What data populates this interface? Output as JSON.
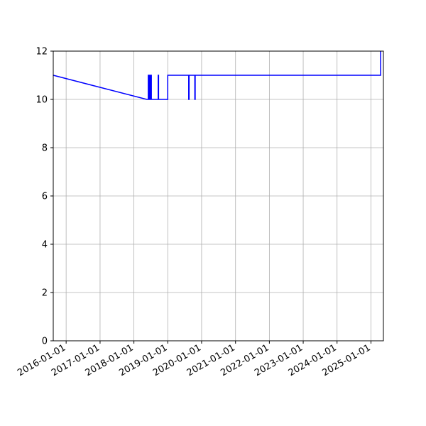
{
  "chart_data": {
    "type": "line",
    "title": "",
    "xlabel": "",
    "ylabel": "",
    "xlim": [
      "2015-08-15",
      "2025-05-15"
    ],
    "ylim": [
      0,
      12
    ],
    "grid": true,
    "x_ticks": [
      "2016-01-01",
      "2017-01-01",
      "2018-01-01",
      "2019-01-01",
      "2020-01-01",
      "2021-01-01",
      "2022-01-01",
      "2023-01-01",
      "2024-01-01",
      "2025-01-01"
    ],
    "y_ticks": [
      0,
      2,
      4,
      6,
      8,
      10,
      12
    ],
    "colors": {
      "line": "#0000ff",
      "grid": "#b0b0b0",
      "axes": "#000000"
    },
    "series": [
      {
        "values": [
          [
            "2015-08-15",
            11
          ],
          [
            "2018-05-20",
            10
          ],
          [
            "2018-06-05",
            10
          ],
          [
            "2018-06-05",
            11
          ],
          [
            "2018-06-10",
            11
          ],
          [
            "2018-06-10",
            10
          ],
          [
            "2018-06-20",
            10
          ],
          [
            "2018-06-20",
            11
          ],
          [
            "2018-06-28",
            11
          ],
          [
            "2018-06-28",
            10
          ],
          [
            "2018-07-03",
            10
          ],
          [
            "2018-07-03",
            11
          ],
          [
            "2018-07-08",
            11
          ],
          [
            "2018-07-08",
            10
          ],
          [
            "2018-09-20",
            10
          ],
          [
            "2018-09-20",
            11
          ],
          [
            "2018-09-24",
            11
          ],
          [
            "2018-09-24",
            10
          ],
          [
            "2019-01-01",
            10
          ],
          [
            "2019-01-01",
            11
          ],
          [
            "2019-08-15",
            11
          ],
          [
            "2019-08-15",
            10
          ],
          [
            "2019-08-19",
            10
          ],
          [
            "2019-08-19",
            11
          ],
          [
            "2019-10-20",
            11
          ],
          [
            "2019-10-20",
            10
          ],
          [
            "2019-10-24",
            10
          ],
          [
            "2019-10-24",
            11
          ],
          [
            "2025-04-15",
            11
          ],
          [
            "2025-04-15",
            12
          ]
        ]
      }
    ]
  }
}
